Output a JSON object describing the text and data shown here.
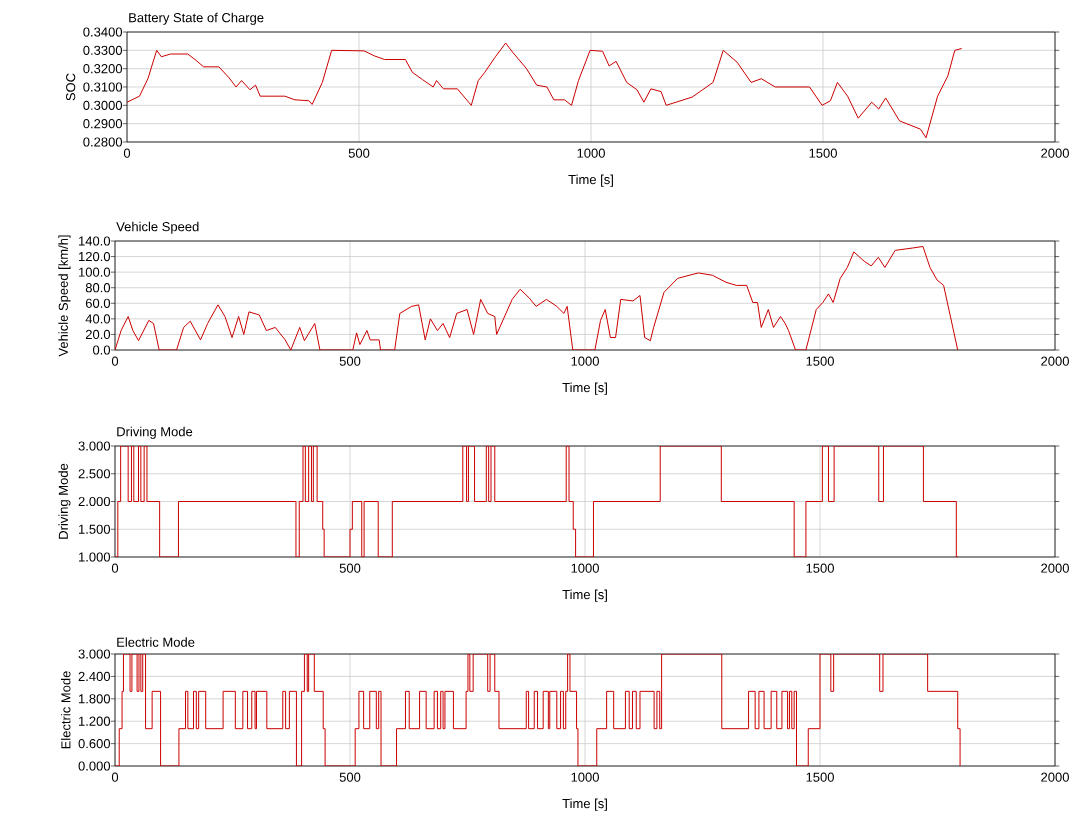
{
  "chart_data": [
    {
      "type": "line",
      "title": "Battery State of Charge",
      "xlabel": "Time [s]",
      "ylabel": "SOC",
      "color": "#cc0000",
      "grid": true,
      "xlim": [
        0,
        2000
      ],
      "xticks": [
        0,
        500,
        1000,
        1500,
        2000
      ],
      "ylim": [
        0.28,
        0.34
      ],
      "yticks": [
        {
          "value": 0.28,
          "label": "0.2800"
        },
        {
          "value": 0.29,
          "label": "0.2900"
        },
        {
          "value": 0.3,
          "label": "0.3000"
        },
        {
          "value": 0.31,
          "label": "0.3100"
        },
        {
          "value": 0.32,
          "label": "0.3200"
        },
        {
          "value": 0.33,
          "label": "0.3300"
        },
        {
          "value": 0.34,
          "label": "0.3400"
        }
      ],
      "x": [
        0,
        27,
        45,
        64,
        74,
        94,
        131,
        149,
        165,
        198,
        220,
        235,
        247,
        265,
        277,
        287,
        340,
        362,
        392,
        399,
        421,
        441,
        511,
        533,
        555,
        600,
        615,
        637,
        660,
        667,
        682,
        712,
        742,
        757,
        771,
        794,
        816,
        831,
        861,
        883,
        905,
        920,
        943,
        958,
        973,
        998,
        1025,
        1039,
        1054,
        1077,
        1099,
        1114,
        1129,
        1151,
        1162,
        1218,
        1263,
        1285,
        1315,
        1345,
        1367,
        1397,
        1427,
        1471,
        1498,
        1516,
        1531,
        1553,
        1576,
        1605,
        1620,
        1635,
        1665,
        1710,
        1722,
        1747,
        1769,
        1784,
        1799
      ],
      "values": [
        0.3017,
        0.305,
        0.3145,
        0.33,
        0.3265,
        0.328,
        0.328,
        0.3245,
        0.321,
        0.321,
        0.315,
        0.31,
        0.3135,
        0.3085,
        0.311,
        0.305,
        0.305,
        0.303,
        0.3025,
        0.3005,
        0.3125,
        0.33,
        0.3297,
        0.327,
        0.325,
        0.325,
        0.318,
        0.314,
        0.31,
        0.3135,
        0.309,
        0.309,
        0.3,
        0.3135,
        0.318,
        0.3265,
        0.334,
        0.329,
        0.32,
        0.311,
        0.31,
        0.303,
        0.303,
        0.3,
        0.3135,
        0.33,
        0.3295,
        0.3215,
        0.324,
        0.3125,
        0.3085,
        0.3017,
        0.309,
        0.3075,
        0.3,
        0.3045,
        0.3125,
        0.33,
        0.3235,
        0.3125,
        0.3145,
        0.31,
        0.31,
        0.31,
        0.3,
        0.3025,
        0.3125,
        0.305,
        0.293,
        0.3017,
        0.298,
        0.304,
        0.2915,
        0.287,
        0.2823,
        0.305,
        0.316,
        0.33,
        0.331
      ]
    },
    {
      "type": "line",
      "title": "Vehicle Speed",
      "xlabel": "Time [s]",
      "ylabel": "Vehicle Speed [km/h]",
      "color": "#cc0000",
      "grid": true,
      "xlim": [
        0,
        2000
      ],
      "xticks": [
        0,
        500,
        1000,
        1500,
        2000
      ],
      "ylim": [
        0,
        140
      ],
      "yticks": [
        {
          "value": 0,
          "label": "0.0"
        },
        {
          "value": 20,
          "label": "20.0"
        },
        {
          "value": 40,
          "label": "40.0"
        },
        {
          "value": 60,
          "label": "60.0"
        },
        {
          "value": 80,
          "label": "80.0"
        },
        {
          "value": 100,
          "label": "100.0"
        },
        {
          "value": 120,
          "label": "120.0"
        },
        {
          "value": 140,
          "label": "140.0"
        }
      ],
      "x": [
        0,
        13,
        28,
        38,
        50,
        72,
        82,
        94,
        131,
        146,
        160,
        182,
        197,
        219,
        234,
        249,
        263,
        274,
        285,
        307,
        322,
        341,
        362,
        374,
        393,
        403,
        425,
        436,
        506,
        514,
        521,
        536,
        543,
        562,
        565,
        595,
        606,
        631,
        646,
        660,
        671,
        686,
        698,
        712,
        727,
        749,
        763,
        778,
        793,
        808,
        812,
        845,
        862,
        881,
        896,
        918,
        940,
        955,
        962,
        974,
        1021,
        1033,
        1043,
        1054,
        1065,
        1076,
        1102,
        1117,
        1127,
        1139,
        1146,
        1168,
        1197,
        1241,
        1271,
        1300,
        1322,
        1344,
        1357,
        1367,
        1375,
        1390,
        1401,
        1416,
        1426,
        1433,
        1448,
        1470,
        1492,
        1506,
        1518,
        1528,
        1543,
        1558,
        1572,
        1594,
        1609,
        1624,
        1638,
        1660,
        1697,
        1719,
        1734,
        1749,
        1763,
        1793
      ],
      "values": [
        0,
        25,
        43,
        25,
        12,
        38,
        34,
        0,
        0,
        29,
        37,
        13,
        34,
        58,
        43,
        16,
        43,
        20,
        49,
        45,
        25,
        29,
        13,
        0,
        29,
        12,
        34,
        0,
        0,
        22,
        7,
        25,
        13,
        13,
        0,
        0,
        47,
        56,
        58,
        13,
        40,
        25,
        34,
        16,
        47,
        52,
        20,
        65,
        47,
        43,
        20,
        65,
        78,
        67,
        56,
        65,
        56,
        47,
        56,
        0,
        0,
        38,
        52,
        16,
        16,
        65,
        63,
        70,
        16,
        12,
        29,
        74,
        92,
        99,
        96,
        87,
        83,
        83,
        61,
        61,
        29,
        52,
        29,
        43,
        34,
        25,
        0,
        0,
        52,
        61,
        72,
        61,
        92,
        106,
        126,
        114,
        108,
        119,
        106,
        128,
        131,
        133,
        106,
        90,
        83,
        0
      ]
    },
    {
      "type": "step",
      "title": "Driving Mode",
      "xlabel": "Time [s]",
      "ylabel": "Driving Mode",
      "color": "#cc0000",
      "grid": true,
      "xlim": [
        0,
        2000
      ],
      "xticks": [
        0,
        500,
        1000,
        1500,
        2000
      ],
      "ylim": [
        1,
        3
      ],
      "yticks": [
        {
          "value": 1,
          "label": "1.000"
        },
        {
          "value": 1.5,
          "label": "1.500"
        },
        {
          "value": 2,
          "label": "2.000"
        },
        {
          "value": 2.5,
          "label": "2.500"
        },
        {
          "value": 3,
          "label": "3.000"
        }
      ],
      "x": [
        0,
        6,
        12,
        28,
        35,
        40,
        50,
        55,
        62,
        68,
        95,
        135,
        385,
        392,
        400,
        405,
        412,
        418,
        422,
        430,
        442,
        445,
        500,
        505,
        525,
        530,
        560,
        590,
        740,
        748,
        752,
        765,
        790,
        795,
        800,
        808,
        960,
        966,
        975,
        980,
        1018,
        1160,
        1290,
        1445,
        1470,
        1505,
        1518,
        1530,
        1625,
        1635,
        1720,
        1790,
        1794
      ],
      "values": [
        1,
        2,
        3,
        2,
        3,
        2,
        3,
        2,
        3,
        2,
        1,
        2,
        1,
        2,
        3,
        2,
        3,
        2,
        3,
        2,
        1.5,
        1,
        1.5,
        2,
        1,
        2,
        1,
        2,
        3,
        2,
        3,
        2,
        3,
        2,
        3,
        2,
        3,
        2,
        1.5,
        1,
        2,
        3,
        2,
        1,
        2,
        3,
        2,
        3,
        2,
        3,
        2,
        1,
        1
      ]
    },
    {
      "type": "step",
      "title": "Electric Mode",
      "xlabel": "Time [s]",
      "ylabel": "Electric Mode",
      "color": "#cc0000",
      "grid": true,
      "xlim": [
        0,
        2000
      ],
      "xticks": [
        0,
        500,
        1000,
        1500,
        2000
      ],
      "ylim": [
        0,
        3
      ],
      "yticks": [
        {
          "value": 0,
          "label": "0.000"
        },
        {
          "value": 0.6,
          "label": "0.600"
        },
        {
          "value": 1.2,
          "label": "1.200"
        },
        {
          "value": 1.8,
          "label": "1.800"
        },
        {
          "value": 2.4,
          "label": "2.400"
        },
        {
          "value": 3,
          "label": "3.000"
        }
      ],
      "x": [
        0,
        9,
        15,
        18,
        32,
        36,
        47,
        51,
        55,
        59,
        65,
        79,
        97,
        136,
        150,
        155,
        167,
        173,
        178,
        193,
        230,
        256,
        272,
        282,
        291,
        298,
        301,
        323,
        336,
        357,
        363,
        371,
        386,
        397,
        403,
        409,
        412,
        424,
        443,
        447,
        508,
        511,
        519,
        529,
        542,
        556,
        561,
        566,
        599,
        618,
        626,
        648,
        662,
        679,
        686,
        693,
        698,
        702,
        720,
        747,
        751,
        755,
        762,
        793,
        798,
        808,
        817,
        875,
        880,
        892,
        899,
        911,
        922,
        925,
        940,
        948,
        954,
        959,
        963,
        968,
        982,
        985,
        1025,
        1046,
        1061,
        1086,
        1094,
        1101,
        1109,
        1117,
        1147,
        1153,
        1159,
        1163,
        1291,
        1348,
        1362,
        1370,
        1381,
        1396,
        1408,
        1419,
        1431,
        1435,
        1440,
        1445,
        1450,
        1475,
        1500,
        1523,
        1529,
        1627,
        1634,
        1729,
        1793,
        1798
      ],
      "values": [
        0,
        1,
        2,
        3,
        2,
        3,
        2,
        3,
        2,
        3,
        1,
        2,
        0,
        1,
        2,
        1,
        2,
        1,
        2,
        1,
        2,
        1,
        2,
        1,
        2,
        1,
        2,
        1,
        1,
        2,
        1,
        2,
        0,
        2,
        3,
        2,
        3,
        2,
        1,
        0,
        0,
        1,
        2,
        1,
        2,
        1,
        2,
        0,
        1,
        2,
        1,
        2,
        1,
        2,
        1,
        2,
        1,
        2,
        1,
        2,
        3,
        2,
        3,
        2,
        3,
        2,
        1,
        2,
        1,
        2,
        1,
        2,
        1,
        2,
        1,
        2,
        1,
        2,
        3,
        2,
        1,
        0,
        1,
        2,
        1,
        2,
        1,
        2,
        1,
        2,
        1,
        2,
        1,
        3,
        1,
        2,
        1,
        2,
        1,
        2,
        1,
        2,
        1,
        2,
        1,
        2,
        0,
        1,
        3,
        2,
        3,
        2,
        3,
        2,
        1,
        0
      ]
    }
  ]
}
